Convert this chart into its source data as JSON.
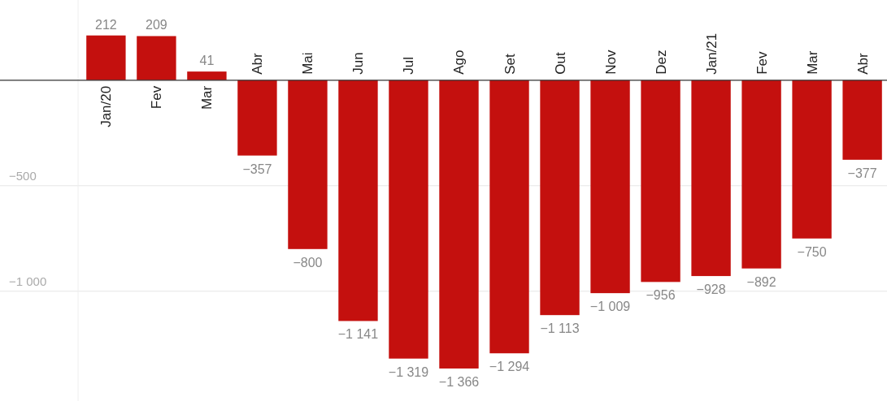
{
  "chart_data": {
    "type": "bar",
    "categories": [
      "Jan/20",
      "Fev",
      "Mar",
      "Abr",
      "Mai",
      "Jun",
      "Jul",
      "Ago",
      "Set",
      "Out",
      "Nov",
      "Dez",
      "Jan/21",
      "Fev",
      "Mar",
      "Abr"
    ],
    "values": [
      212,
      209,
      41,
      -357,
      -800,
      -1141,
      -1319,
      -1366,
      -1294,
      -1113,
      -1009,
      -956,
      -928,
      -892,
      -750,
      -377
    ],
    "value_labels": [
      "212",
      "209",
      "41",
      "−357",
      "−800",
      "−1 141",
      "−1 319",
      "−1 366",
      "−1 294",
      "−1 113",
      "−1 009",
      "−956",
      "−928",
      "−892",
      "−750",
      "−377"
    ],
    "color": "#c4100e",
    "ylim": [
      -1520,
      380
    ],
    "yticks": [
      {
        "value": -500,
        "label": "−500"
      },
      {
        "value": -1000,
        "label": "−1 000"
      }
    ],
    "grid": "y"
  }
}
